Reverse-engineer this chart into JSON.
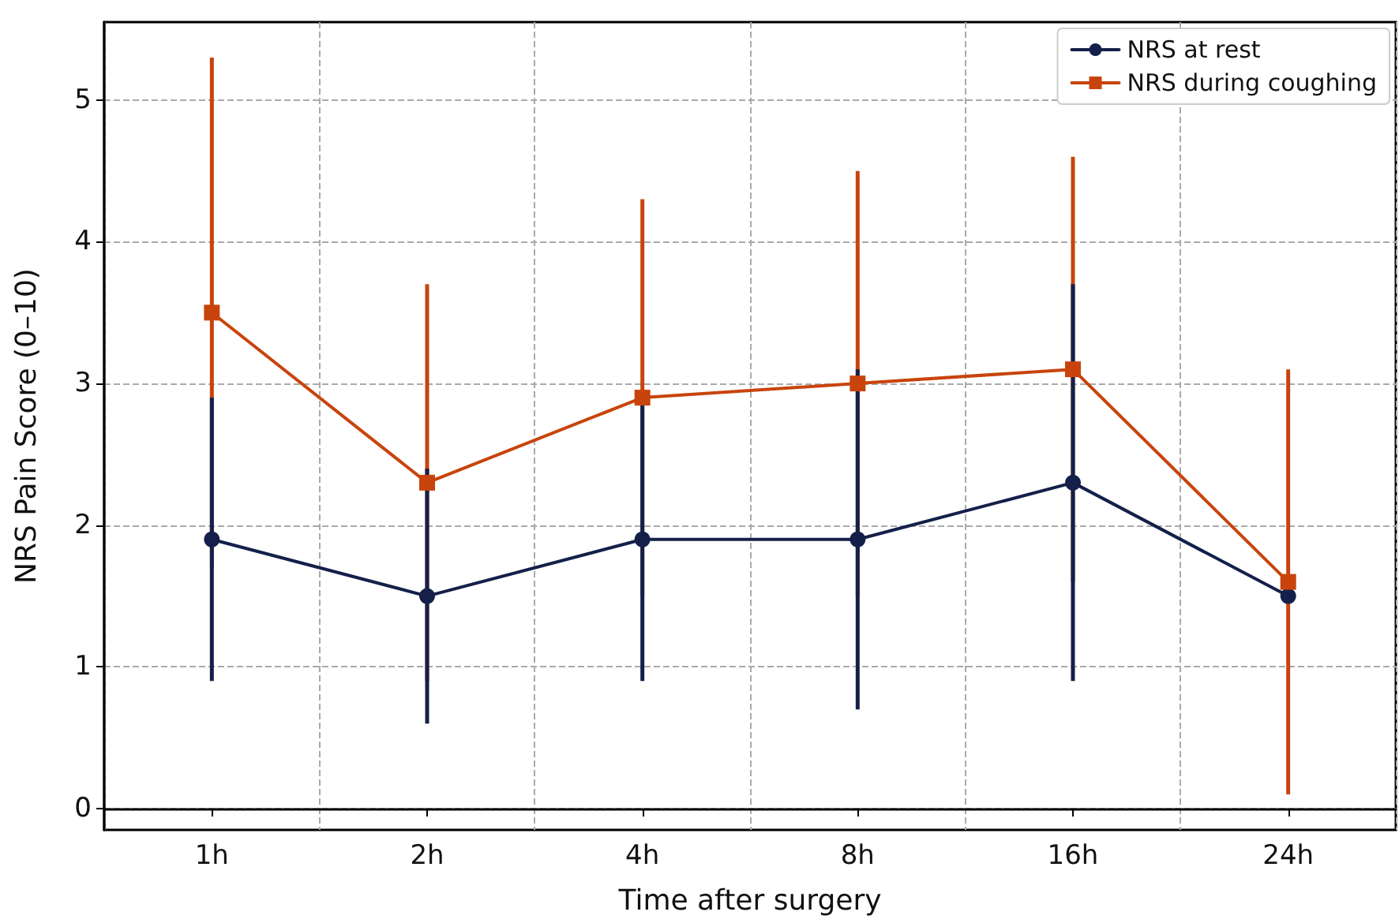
{
  "chart_data": {
    "type": "line",
    "xlabel": "Time after surgery",
    "ylabel": "NRS Pain Score (0–10)",
    "categories": [
      "1h",
      "2h",
      "4h",
      "8h",
      "16h",
      "24h"
    ],
    "series": [
      {
        "name": "NRS at rest",
        "color": "#14204a",
        "marker": "circle",
        "values": [
          1.9,
          1.5,
          1.9,
          1.9,
          2.3,
          1.5
        ],
        "errors": [
          1.0,
          0.9,
          1.0,
          1.2,
          1.4,
          null
        ]
      },
      {
        "name": "NRS during coughing",
        "color": "#c8440c",
        "marker": "square",
        "values": [
          3.5,
          2.3,
          2.9,
          3.0,
          3.1,
          1.6
        ],
        "errors": [
          1.8,
          1.4,
          1.4,
          1.5,
          1.5,
          1.5
        ]
      }
    ],
    "ylim": [
      -0.15,
      5.55
    ],
    "yticks": [
      0,
      1,
      2,
      3,
      4,
      5
    ],
    "grid": true,
    "legend": "top right",
    "line_style": "solid"
  }
}
